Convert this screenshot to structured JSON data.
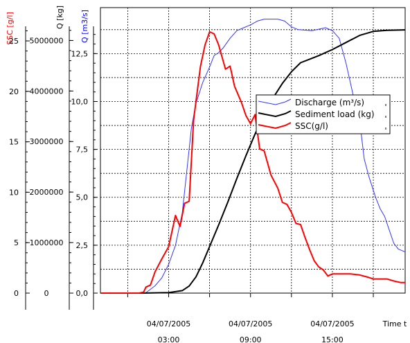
{
  "chart_data": {
    "type": "line",
    "title": "",
    "x_axis": {
      "label": "Time t",
      "tick_labels": [
        {
          "time": "2005-07-04T03:00",
          "line1": "04/07/2005",
          "line2": "03:00"
        },
        {
          "time": "2005-07-04T09:00",
          "line1": "04/07/2005",
          "line2": "09:00"
        },
        {
          "time": "2005-07-04T15:00",
          "line1": "04/07/2005",
          "line2": "15:00"
        }
      ],
      "range": [
        "2005-07-03T22:00",
        "2005-07-04T20:20"
      ]
    },
    "y_axes": [
      {
        "id": "ssc",
        "label": "SSC  [g/l]",
        "color": "#ff0000",
        "ticks": [
          "0",
          "5",
          "10",
          "15",
          "20",
          "25"
        ],
        "range": [
          0,
          28.3
        ]
      },
      {
        "id": "load",
        "label": "Q [kg]",
        "color": "#000000",
        "ticks": [
          "0",
          "1000000",
          "2000000",
          "3000000",
          "4000000",
          "5000000"
        ],
        "range": [
          0,
          5650000
        ]
      },
      {
        "id": "q",
        "label": "Q [m3/s]",
        "color": "#0000ff",
        "ticks": [
          "0,0",
          "2,5",
          "5,0",
          "7,5",
          "10,0",
          "12,5"
        ],
        "range": [
          0,
          14.9
        ]
      }
    ],
    "grid": true,
    "legend": {
      "placement": "center-right",
      "entries": [
        "Discharge (m³/s)",
        "Sediment load (kg)",
        "SSC(g/l)"
      ]
    },
    "series": [
      {
        "name": "Discharge (m³/s)",
        "axis": "q",
        "color": "#3333ff",
        "points": [
          [
            "2005-07-03T22:00",
            0
          ],
          [
            "2005-07-04T01:00",
            0
          ],
          [
            "2005-07-04T01:20",
            0.02
          ],
          [
            "2005-07-04T01:40",
            0.2
          ],
          [
            "2005-07-04T02:00",
            0.38
          ],
          [
            "2005-07-04T02:30",
            0.8
          ],
          [
            "2005-07-04T03:00",
            1.5
          ],
          [
            "2005-07-04T03:30",
            2.5
          ],
          [
            "2005-07-04T04:00",
            4.2
          ],
          [
            "2005-07-04T04:20",
            6.4
          ],
          [
            "2005-07-04T04:40",
            8.6
          ],
          [
            "2005-07-04T05:00",
            9.9
          ],
          [
            "2005-07-04T05:30",
            11.0
          ],
          [
            "2005-07-04T06:00",
            11.8
          ],
          [
            "2005-07-04T06:20",
            12.4
          ],
          [
            "2005-07-04T06:40",
            12.55
          ],
          [
            "2005-07-04T07:00",
            12.8
          ],
          [
            "2005-07-04T07:30",
            13.3
          ],
          [
            "2005-07-04T08:00",
            13.7
          ],
          [
            "2005-07-04T08:30",
            13.85
          ],
          [
            "2005-07-04T09:00",
            14.0
          ],
          [
            "2005-07-04T09:30",
            14.2
          ],
          [
            "2005-07-04T10:00",
            14.3
          ],
          [
            "2005-07-04T11:00",
            14.3
          ],
          [
            "2005-07-04T11:30",
            14.2
          ],
          [
            "2005-07-04T12:00",
            13.9
          ],
          [
            "2005-07-04T12:30",
            13.75
          ],
          [
            "2005-07-04T13:30",
            13.7
          ],
          [
            "2005-07-04T14:30",
            13.85
          ],
          [
            "2005-07-04T15:00",
            13.7
          ],
          [
            "2005-07-04T15:30",
            13.3
          ],
          [
            "2005-07-04T16:00",
            12.0
          ],
          [
            "2005-07-04T16:30",
            10.4
          ],
          [
            "2005-07-04T17:00",
            9.0
          ],
          [
            "2005-07-04T17:20",
            7.0
          ],
          [
            "2005-07-04T17:40",
            6.1
          ],
          [
            "2005-07-04T18:10",
            5.0
          ],
          [
            "2005-07-04T18:30",
            4.4
          ],
          [
            "2005-07-04T18:50",
            4.0
          ],
          [
            "2005-07-04T19:10",
            3.3
          ],
          [
            "2005-07-04T19:30",
            2.6
          ],
          [
            "2005-07-04T19:50",
            2.3
          ],
          [
            "2005-07-04T20:20",
            2.15
          ]
        ]
      },
      {
        "name": "Sediment load (kg)",
        "axis": "load",
        "color": "#000000",
        "points": [
          [
            "2005-07-03T22:00",
            0
          ],
          [
            "2005-07-04T01:00",
            0
          ],
          [
            "2005-07-04T03:00",
            10000
          ],
          [
            "2005-07-04T04:00",
            50000
          ],
          [
            "2005-07-04T04:30",
            140000
          ],
          [
            "2005-07-04T05:00",
            320000
          ],
          [
            "2005-07-04T05:30",
            600000
          ],
          [
            "2005-07-04T06:00",
            920000
          ],
          [
            "2005-07-04T06:40",
            1350000
          ],
          [
            "2005-07-04T07:20",
            1800000
          ],
          [
            "2005-07-04T08:00",
            2270000
          ],
          [
            "2005-07-04T08:40",
            2720000
          ],
          [
            "2005-07-04T09:20",
            3150000
          ],
          [
            "2005-07-04T10:00",
            3530000
          ],
          [
            "2005-07-04T10:40",
            3870000
          ],
          [
            "2005-07-04T11:20",
            4150000
          ],
          [
            "2005-07-04T12:00",
            4380000
          ],
          [
            "2005-07-04T12:40",
            4560000
          ],
          [
            "2005-07-04T13:20",
            4630000
          ],
          [
            "2005-07-04T14:00",
            4700000
          ],
          [
            "2005-07-04T15:00",
            4820000
          ],
          [
            "2005-07-04T16:00",
            4960000
          ],
          [
            "2005-07-04T17:00",
            5100000
          ],
          [
            "2005-07-04T18:00",
            5180000
          ],
          [
            "2005-07-04T19:00",
            5200000
          ],
          [
            "2005-07-04T20:20",
            5210000
          ]
        ]
      },
      {
        "name": "SSC(g/l)",
        "axis": "ssc",
        "color": "#ff0000",
        "points": [
          [
            "2005-07-03T22:00",
            0
          ],
          [
            "2005-07-04T00:50",
            0
          ],
          [
            "2005-07-04T01:10",
            0.1
          ],
          [
            "2005-07-04T01:20",
            0.6
          ],
          [
            "2005-07-04T01:40",
            0.8
          ],
          [
            "2005-07-04T02:00",
            2.1
          ],
          [
            "2005-07-04T02:30",
            3.4
          ],
          [
            "2005-07-04T03:00",
            4.6
          ],
          [
            "2005-07-04T03:30",
            7.7
          ],
          [
            "2005-07-04T03:50",
            6.6
          ],
          [
            "2005-07-04T04:10",
            8.9
          ],
          [
            "2005-07-04T04:30",
            9.1
          ],
          [
            "2005-07-04T04:50",
            17.2
          ],
          [
            "2005-07-04T05:20",
            22.5
          ],
          [
            "2005-07-04T05:40",
            24.6
          ],
          [
            "2005-07-04T06:00",
            25.9
          ],
          [
            "2005-07-04T06:20",
            25.7
          ],
          [
            "2005-07-04T06:40",
            24.6
          ],
          [
            "2005-07-04T07:10",
            22.2
          ],
          [
            "2005-07-04T07:30",
            22.5
          ],
          [
            "2005-07-04T07:50",
            20.5
          ],
          [
            "2005-07-04T08:20",
            18.9
          ],
          [
            "2005-07-04T08:40",
            17.6
          ],
          [
            "2005-07-04T09:00",
            16.8
          ],
          [
            "2005-07-04T09:20",
            17.7
          ],
          [
            "2005-07-04T09:40",
            14.3
          ],
          [
            "2005-07-04T10:00",
            14.1
          ],
          [
            "2005-07-04T10:30",
            11.7
          ],
          [
            "2005-07-04T11:00",
            10.4
          ],
          [
            "2005-07-04T11:20",
            9.0
          ],
          [
            "2005-07-04T11:40",
            8.8
          ],
          [
            "2005-07-04T12:00",
            8.0
          ],
          [
            "2005-07-04T12:20",
            6.9
          ],
          [
            "2005-07-04T12:40",
            6.8
          ],
          [
            "2005-07-04T13:00",
            5.5
          ],
          [
            "2005-07-04T13:20",
            4.3
          ],
          [
            "2005-07-04T13:40",
            3.2
          ],
          [
            "2005-07-04T14:00",
            2.6
          ],
          [
            "2005-07-04T14:20",
            2.3
          ],
          [
            "2005-07-04T14:40",
            1.7
          ],
          [
            "2005-07-04T15:00",
            1.9
          ],
          [
            "2005-07-04T16:20",
            1.9
          ],
          [
            "2005-07-04T17:00",
            1.8
          ],
          [
            "2005-07-04T17:40",
            1.55
          ],
          [
            "2005-07-04T18:00",
            1.4
          ],
          [
            "2005-07-04T19:00",
            1.4
          ],
          [
            "2005-07-04T19:30",
            1.2
          ],
          [
            "2005-07-04T20:00",
            1.05
          ],
          [
            "2005-07-04T20:20",
            1.05
          ]
        ]
      }
    ]
  }
}
